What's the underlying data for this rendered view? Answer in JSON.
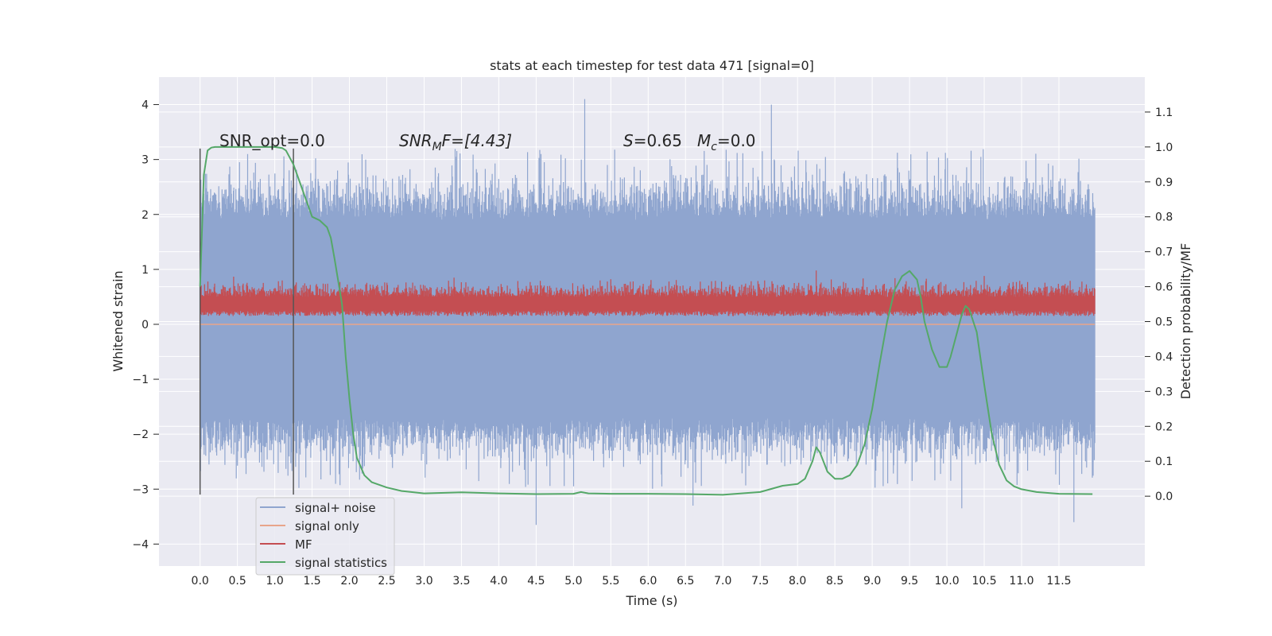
{
  "chart_data": {
    "type": "line",
    "title": "stats at each timestep for test data 471 [signal=0]",
    "xlabel": "Time (s)",
    "ylabel": "Whitened strain",
    "ylabel_right": "Detection probability/MF",
    "xlim": [
      -0.55,
      12.65
    ],
    "ylim": [
      -4.4,
      4.5
    ],
    "ylim_right": [
      -0.2,
      1.2
    ],
    "x_ticks": [
      "0.0",
      "0.5",
      "1.0",
      "1.5",
      "2.0",
      "2.5",
      "3.0",
      "3.5",
      "4.0",
      "4.5",
      "5.0",
      "5.5",
      "6.0",
      "6.5",
      "7.0",
      "7.5",
      "8.0",
      "8.5",
      "9.0",
      "9.5",
      "10.0",
      "10.5",
      "11.0",
      "11.5"
    ],
    "y_ticks": [
      "−4",
      "−3",
      "−2",
      "−1",
      "0",
      "1",
      "2",
      "3",
      "4"
    ],
    "y_ticks_right": [
      "0.0",
      "0.1",
      "0.2",
      "0.3",
      "0.4",
      "0.5",
      "0.6",
      "0.7",
      "0.8",
      "0.9",
      "1.0",
      "1.1"
    ],
    "annotations": {
      "snr_opt": "SNR_opt=0.0",
      "snr_mf_prefix": "SNR",
      "snr_mf_sub": "M",
      "snr_mf_suffix": "F=[4.43]",
      "s_label": "S",
      "s_value": "=0.65",
      "mc_label": "M",
      "mc_sub": "c",
      "mc_value": "=0.0"
    },
    "window_markers_x": [
      0.0,
      1.25
    ],
    "legend": {
      "placement": "lower-left",
      "entries": [
        "signal+ noise",
        "signal only",
        "MF",
        "signal statistics"
      ]
    },
    "colors": {
      "background": "#eaeaf2",
      "grid": "#ffffff",
      "noise": "#8fa5cf",
      "signal_only": "#e8a58a",
      "mf": "#c44e52",
      "stat": "#55a868",
      "marker": "#555555"
    },
    "series": [
      {
        "name": "signal+ noise",
        "axis": "left",
        "x_range": [
          0.0,
          11.98
        ],
        "envelope_typical": [
          -2.1,
          2.3
        ],
        "band_core": [
          -1.7,
          1.9
        ],
        "spikes": [
          [
            5.15,
            4.1
          ],
          [
            7.65,
            4.0
          ],
          [
            4.5,
            -3.65
          ],
          [
            11.7,
            -3.6
          ],
          [
            10.2,
            -3.35
          ],
          [
            6.6,
            -3.3
          ]
        ]
      },
      {
        "name": "signal only",
        "axis": "left",
        "x": [
          0.0,
          11.98
        ],
        "y": [
          0.0,
          0.0
        ]
      },
      {
        "name": "MF",
        "axis": "left",
        "x_range": [
          0.0,
          11.98
        ],
        "band": [
          0.1,
          0.65
        ],
        "spikes": [
          [
            8.25,
            0.98
          ],
          [
            5.5,
            0.82
          ],
          [
            10.5,
            0.88
          ],
          [
            1.1,
            0.8
          ],
          [
            3.4,
            0.85
          ]
        ]
      },
      {
        "name": "signal statistics",
        "axis": "right",
        "x": [
          0.0,
          0.05,
          0.1,
          0.15,
          0.2,
          0.3,
          0.5,
          0.8,
          1.0,
          1.1,
          1.15,
          1.25,
          1.3,
          1.4,
          1.5,
          1.6,
          1.7,
          1.75,
          1.8,
          1.9,
          1.95,
          2.0,
          2.05,
          2.1,
          2.2,
          2.3,
          2.5,
          2.7,
          3.0,
          3.5,
          4.0,
          4.5,
          5.0,
          5.1,
          5.2,
          5.5,
          6.0,
          6.5,
          7.0,
          7.5,
          7.8,
          8.0,
          8.1,
          8.2,
          8.25,
          8.3,
          8.4,
          8.5,
          8.6,
          8.7,
          8.8,
          8.9,
          9.0,
          9.1,
          9.2,
          9.3,
          9.4,
          9.5,
          9.6,
          9.65,
          9.7,
          9.8,
          9.9,
          10.0,
          10.05,
          10.1,
          10.2,
          10.25,
          10.3,
          10.4,
          10.5,
          10.6,
          10.7,
          10.8,
          10.9,
          11.0,
          11.2,
          11.5,
          11.95
        ],
        "y": [
          0.6,
          0.92,
          0.99,
          0.998,
          1.0,
          1.0,
          1.0,
          1.0,
          1.0,
          0.997,
          0.99,
          0.95,
          0.92,
          0.86,
          0.8,
          0.79,
          0.77,
          0.74,
          0.68,
          0.55,
          0.4,
          0.28,
          0.18,
          0.11,
          0.06,
          0.04,
          0.025,
          0.015,
          0.008,
          0.011,
          0.008,
          0.006,
          0.007,
          0.012,
          0.008,
          0.007,
          0.007,
          0.006,
          0.004,
          0.012,
          0.03,
          0.035,
          0.05,
          0.1,
          0.14,
          0.125,
          0.07,
          0.05,
          0.05,
          0.06,
          0.09,
          0.15,
          0.25,
          0.38,
          0.5,
          0.59,
          0.63,
          0.645,
          0.62,
          0.57,
          0.5,
          0.42,
          0.37,
          0.37,
          0.4,
          0.44,
          0.52,
          0.545,
          0.535,
          0.47,
          0.32,
          0.18,
          0.09,
          0.045,
          0.028,
          0.02,
          0.012,
          0.007,
          0.006
        ]
      }
    ]
  }
}
